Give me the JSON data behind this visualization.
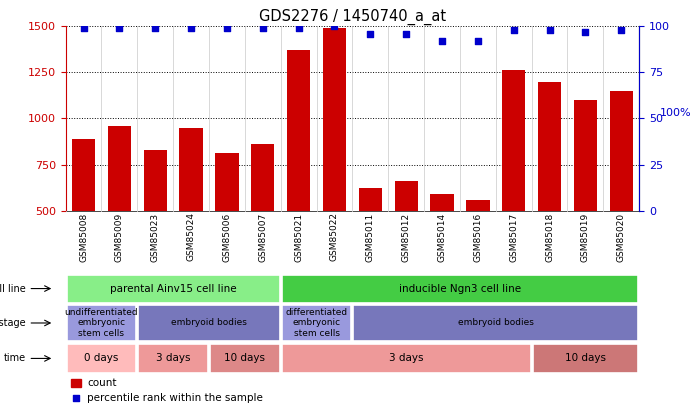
{
  "title": "GDS2276 / 1450740_a_at",
  "samples": [
    "GSM85008",
    "GSM85009",
    "GSM85023",
    "GSM85024",
    "GSM85006",
    "GSM85007",
    "GSM85021",
    "GSM85022",
    "GSM85011",
    "GSM85012",
    "GSM85014",
    "GSM85016",
    "GSM85017",
    "GSM85018",
    "GSM85019",
    "GSM85020"
  ],
  "counts": [
    890,
    960,
    830,
    950,
    810,
    860,
    1370,
    1490,
    620,
    660,
    590,
    555,
    1265,
    1200,
    1100,
    1150
  ],
  "pct_yvals": [
    99,
    99,
    99,
    99,
    99,
    99,
    99,
    100,
    96,
    96,
    92,
    92,
    98,
    98,
    97,
    98
  ],
  "bar_color": "#CC0000",
  "dot_color": "#0000CC",
  "ylim_left": [
    500,
    1500
  ],
  "ylim_right": [
    0,
    100
  ],
  "yticks_left": [
    500,
    750,
    1000,
    1250,
    1500
  ],
  "yticks_right": [
    0,
    25,
    50,
    75,
    100
  ],
  "cell_line_groups": [
    {
      "text": "parental Ainv15 cell line",
      "start": 0,
      "end": 6,
      "color": "#88EE88"
    },
    {
      "text": "inducible Ngn3 cell line",
      "start": 6,
      "end": 16,
      "color": "#44CC44"
    }
  ],
  "dev_stage_groups": [
    {
      "text": "undifferentiated\nembryonic\nstem cells",
      "start": 0,
      "end": 2,
      "color": "#9999DD"
    },
    {
      "text": "embryoid bodies",
      "start": 2,
      "end": 6,
      "color": "#7777BB"
    },
    {
      "text": "differentiated\nembryonic\nstem cells",
      "start": 6,
      "end": 8,
      "color": "#9999DD"
    },
    {
      "text": "embryoid bodies",
      "start": 8,
      "end": 16,
      "color": "#7777BB"
    }
  ],
  "time_groups": [
    {
      "text": "0 days",
      "start": 0,
      "end": 2,
      "color": "#FFBBBB"
    },
    {
      "text": "3 days",
      "start": 2,
      "end": 4,
      "color": "#EE9999"
    },
    {
      "text": "10 days",
      "start": 4,
      "end": 6,
      "color": "#DD8888"
    },
    {
      "text": "3 days",
      "start": 6,
      "end": 13,
      "color": "#EE9999"
    },
    {
      "text": "10 days",
      "start": 13,
      "end": 16,
      "color": "#CC7777"
    }
  ],
  "row_labels": [
    "cell line",
    "development stage",
    "time"
  ],
  "legend_count_label": "count",
  "legend_pct_label": "percentile rank within the sample"
}
